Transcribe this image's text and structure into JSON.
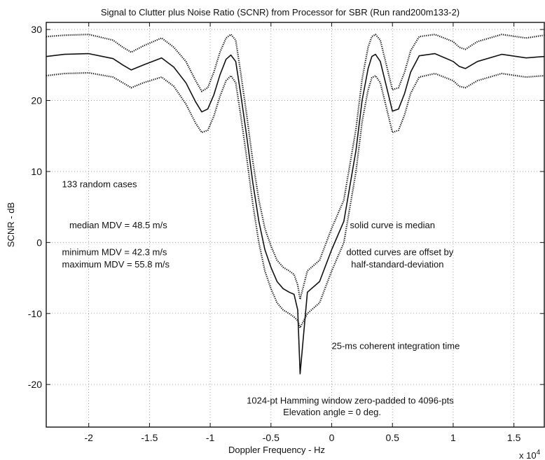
{
  "chart_data": {
    "type": "line",
    "title": "Signal to Clutter plus Noise Ratio (SCNR) from Processor for SBR (Run rand200m133-2)",
    "xlabel": "Doppler Frequency - Hz",
    "ylabel": "SCNR - dB",
    "x_multiplier": "x 10",
    "x_multiplier_exp": "4",
    "xlim": [
      -2.35,
      1.75
    ],
    "ylim": [
      -26,
      31
    ],
    "grid": true,
    "xticks": [
      -2,
      -1.5,
      -1,
      -0.5,
      0,
      0.5,
      1,
      1.5
    ],
    "xtick_labels": [
      "-2",
      "-1.5",
      "-1",
      "-0.5",
      "0",
      "0.5",
      "1",
      "1.5"
    ],
    "yticks": [
      -20,
      -10,
      0,
      10,
      20,
      30
    ],
    "ytick_labels": [
      "-20",
      "-10",
      "0",
      "10",
      "20",
      "30"
    ],
    "series": [
      {
        "style": "solid",
        "x": [
          -2.35,
          -2.2,
          -2.0,
          -1.8,
          -1.72,
          -1.65,
          -1.55,
          -1.4,
          -1.3,
          -1.2,
          -1.12,
          -1.07,
          -1.02,
          -0.97,
          -0.92,
          -0.87,
          -0.83,
          -0.79,
          -0.75,
          -0.7,
          -0.65,
          -0.6,
          -0.55,
          -0.5,
          -0.45,
          -0.4,
          -0.35,
          -0.31,
          -0.28,
          -0.26,
          -0.2,
          -0.1,
          0.0,
          0.1,
          0.2,
          0.25,
          0.3,
          0.33,
          0.36,
          0.4,
          0.45,
          0.5,
          0.55,
          0.6,
          0.65,
          0.72,
          0.85,
          1.0,
          1.05,
          1.1,
          1.2,
          1.4,
          1.6,
          1.75
        ],
        "y": [
          26.2,
          26.5,
          26.6,
          25.9,
          25.0,
          24.3,
          25.0,
          26.0,
          24.7,
          22.5,
          19.8,
          18.4,
          18.8,
          20.8,
          23.6,
          25.8,
          26.4,
          25.5,
          21.0,
          15.0,
          8.5,
          3.0,
          -1.0,
          -3.5,
          -5.5,
          -6.5,
          -7.0,
          -7.3,
          -9.5,
          -18.5,
          -7.0,
          -5.5,
          -1.0,
          3.0,
          13.0,
          20.0,
          24.5,
          26.2,
          26.5,
          25.5,
          22.0,
          18.5,
          18.8,
          21.0,
          24.0,
          26.3,
          26.6,
          25.5,
          24.8,
          24.5,
          25.5,
          26.5,
          26.0,
          26.2
        ]
      },
      {
        "style": "dotted",
        "x": [
          -2.35,
          -2.2,
          -2.0,
          -1.8,
          -1.72,
          -1.65,
          -1.55,
          -1.4,
          -1.3,
          -1.2,
          -1.12,
          -1.07,
          -1.02,
          -0.97,
          -0.92,
          -0.87,
          -0.83,
          -0.79,
          -0.75,
          -0.7,
          -0.65,
          -0.6,
          -0.55,
          -0.5,
          -0.45,
          -0.4,
          -0.35,
          -0.31,
          -0.28,
          -0.26,
          -0.2,
          -0.1,
          0.0,
          0.1,
          0.2,
          0.25,
          0.3,
          0.33,
          0.36,
          0.4,
          0.45,
          0.5,
          0.55,
          0.6,
          0.65,
          0.72,
          0.85,
          1.0,
          1.05,
          1.1,
          1.2,
          1.4,
          1.6,
          1.75
        ],
        "y": [
          29.0,
          29.2,
          29.3,
          28.5,
          27.5,
          26.8,
          27.7,
          28.8,
          27.5,
          25.5,
          22.8,
          21.3,
          21.8,
          24.0,
          26.8,
          28.8,
          29.3,
          28.5,
          24.0,
          18.0,
          11.5,
          6.0,
          2.0,
          -0.5,
          -2.5,
          -3.5,
          -4.0,
          -4.5,
          -6.0,
          -8.0,
          -4.0,
          -2.5,
          2.0,
          6.0,
          16.0,
          23.0,
          27.5,
          29.0,
          29.3,
          28.5,
          25.0,
          21.5,
          21.8,
          24.0,
          27.0,
          29.0,
          29.3,
          28.3,
          27.5,
          27.2,
          28.3,
          29.3,
          28.8,
          29.2
        ]
      },
      {
        "style": "dotted",
        "x": [
          -2.35,
          -2.2,
          -2.0,
          -1.8,
          -1.72,
          -1.65,
          -1.55,
          -1.4,
          -1.3,
          -1.2,
          -1.12,
          -1.07,
          -1.02,
          -0.97,
          -0.92,
          -0.87,
          -0.83,
          -0.79,
          -0.75,
          -0.7,
          -0.65,
          -0.6,
          -0.55,
          -0.5,
          -0.45,
          -0.4,
          -0.35,
          -0.31,
          -0.28,
          -0.26,
          -0.2,
          -0.1,
          0.0,
          0.1,
          0.2,
          0.25,
          0.3,
          0.33,
          0.36,
          0.4,
          0.45,
          0.5,
          0.55,
          0.6,
          0.65,
          0.72,
          0.85,
          1.0,
          1.05,
          1.1,
          1.2,
          1.4,
          1.6,
          1.75
        ],
        "y": [
          23.5,
          23.8,
          23.9,
          23.3,
          22.5,
          21.8,
          22.5,
          23.3,
          22.0,
          19.5,
          16.8,
          15.5,
          15.8,
          17.8,
          20.6,
          22.8,
          23.5,
          22.5,
          18.0,
          12.0,
          5.5,
          0.0,
          -4.0,
          -6.5,
          -8.5,
          -9.5,
          -10.0,
          -10.5,
          -11.0,
          -12.0,
          -10.0,
          -8.5,
          -4.0,
          0.0,
          10.0,
          17.0,
          21.5,
          23.2,
          23.5,
          22.5,
          19.0,
          15.5,
          15.8,
          18.0,
          21.0,
          23.3,
          23.8,
          22.8,
          22.0,
          21.8,
          22.8,
          23.8,
          23.3,
          23.5
        ]
      }
    ],
    "annotations": [
      {
        "text": "133 random cases",
        "x": -2.22,
        "y": 7.8
      },
      {
        "text": "median MDV = 48.5 m/s",
        "x": -2.16,
        "y": 2.0
      },
      {
        "text": "minimum MDV = 42.3 m/s",
        "x": -2.22,
        "y": -1.8
      },
      {
        "text": "maximum MDV = 55.8 m/s",
        "x": -2.22,
        "y": -3.5
      },
      {
        "text": "solid curve is median",
        "x": 0.15,
        "y": 2.0
      },
      {
        "text": "dotted curves are offset by",
        "x": 0.12,
        "y": -1.8
      },
      {
        "text": "half-standard-deviation",
        "x": 0.16,
        "y": -3.5
      },
      {
        "text": "25-ms coherent integration time",
        "x": 0.0,
        "y": -15.0
      },
      {
        "text": "1024-pt Hamming window zero-padded to 4096-pts",
        "x": -0.7,
        "y": -22.7
      },
      {
        "text": "Elevation angle = 0 deg.",
        "x": -0.4,
        "y": -24.3
      }
    ]
  }
}
